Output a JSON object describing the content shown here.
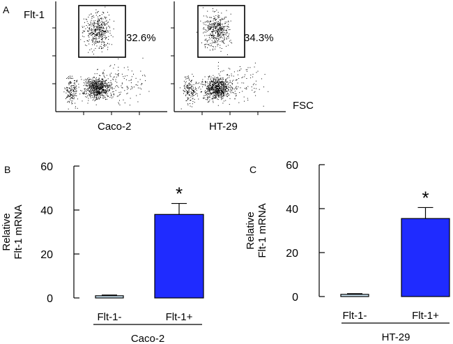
{
  "panel_a": {
    "label": "A",
    "y_axis_label": "Flt-1",
    "x_axis_label": "FSC",
    "plots": [
      {
        "name": "Caco-2",
        "gate_percent": "32.6%"
      },
      {
        "name": "HT-29",
        "gate_percent": "34.3%"
      }
    ]
  },
  "chart_data": [
    {
      "type": "bar",
      "panel": "B",
      "title": "",
      "categories": [
        "Flt-1-",
        "Flt-1+"
      ],
      "values": [
        1,
        38
      ],
      "error": [
        0.3,
        5
      ],
      "significance": [
        "",
        "*"
      ],
      "group_label": "Caco-2",
      "ylabel": "Relative Flt-1 mRNA",
      "ylabel_lines": [
        "Relative",
        "Flt-1 mRNA"
      ],
      "ylim": [
        0,
        60
      ],
      "yticks": [
        0,
        20,
        40,
        60
      ],
      "colors": [
        "#cfe8f7",
        "#1f2bff"
      ]
    },
    {
      "type": "bar",
      "panel": "C",
      "title": "",
      "categories": [
        "Flt-1-",
        "Flt-1+"
      ],
      "values": [
        1,
        35.5
      ],
      "error": [
        0.3,
        5
      ],
      "significance": [
        "",
        "*"
      ],
      "group_label": "HT-29",
      "ylabel": "Relative Flt-1 mRNA",
      "ylabel_lines": [
        "Relative",
        "Flt-1 mRNA"
      ],
      "ylim": [
        0,
        60
      ],
      "yticks": [
        0,
        20,
        40,
        60
      ],
      "colors": [
        "#cfe8f7",
        "#1f2bff"
      ]
    }
  ]
}
